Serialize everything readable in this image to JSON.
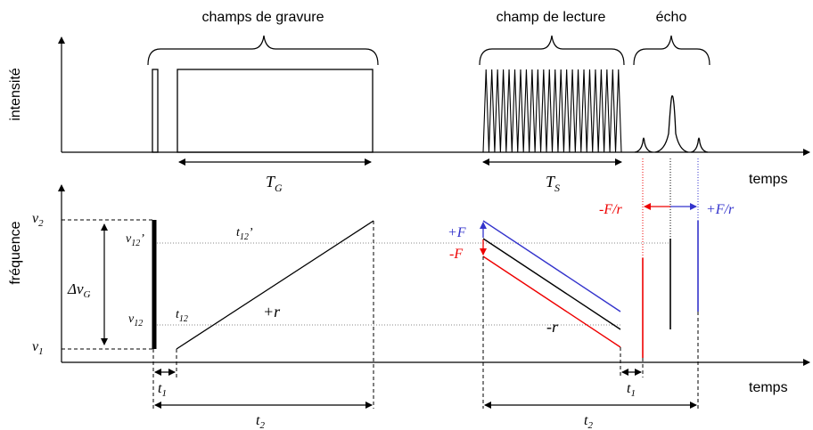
{
  "labels": {
    "intensity_axis": "intensité",
    "frequency_axis": "fréquence",
    "time_top": "temps",
    "time_bottom": "temps",
    "burn_fields": "champs de gravure",
    "read_field": "champ de lecture",
    "echo": "écho",
    "TG_T": "T",
    "TG_sub": "G",
    "TS_T": "T",
    "TS_sub": "S",
    "nu2": "ν",
    "nu2_sub": "2",
    "nu1": "ν",
    "nu1_sub": "1",
    "nu12p": "ν",
    "nu12p_sub": "12",
    "nu12p_prime": "’",
    "nu12": "ν",
    "nu12_sub": "12",
    "delta_nu": "Δν",
    "delta_nu_sub": "G",
    "t12p": "t",
    "t12p_sub": "12",
    "t12p_prime": "’",
    "t12": "t",
    "t12_sub": "12",
    "plus_r": "+r",
    "minus_r": "-r",
    "plus_F": "+F",
    "minus_F": "-F",
    "minus_F_over_r": "-F/r",
    "plus_F_over_r": "+F/r",
    "t1_left": "t",
    "t1_left_sub": "1",
    "t1_right": "t",
    "t1_right_sub": "1",
    "t2_left": "t",
    "t2_left_sub": "2",
    "t2_right": "t",
    "t2_right_sub": "2"
  },
  "colors": {
    "axis": "#000000",
    "blue": "#3333cc",
    "red": "#ee0000",
    "guide": "#888888"
  },
  "read_field_oscillations": 24
}
